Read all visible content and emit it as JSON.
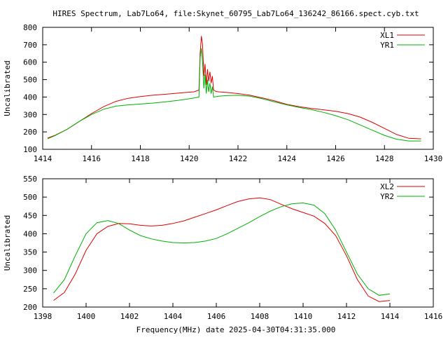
{
  "title": "HIRES Spectrum, Lab7Lo64, file:Skynet_60795_Lab7Lo64_136242_86166.spect.cyb.txt",
  "xlabel": "Frequency(MHz) date 2025-04-30T04:31:35.000",
  "chart_data": [
    {
      "type": "line",
      "ylabel": "Uncalibrated",
      "xlim": [
        1414,
        1430
      ],
      "ylim": [
        100,
        800
      ],
      "xticks": [
        1414,
        1416,
        1418,
        1420,
        1422,
        1424,
        1426,
        1428,
        1430
      ],
      "yticks": [
        100,
        200,
        300,
        400,
        500,
        600,
        700,
        800
      ],
      "legend": "top-right",
      "series": [
        {
          "name": "XL1",
          "color": "#e00000",
          "x": [
            1414.2,
            1414.5,
            1415,
            1415.5,
            1416,
            1416.5,
            1417,
            1417.5,
            1418,
            1418.5,
            1419,
            1419.5,
            1420,
            1420.2,
            1420.4,
            1420.45,
            1420.5,
            1420.55,
            1420.6,
            1420.65,
            1420.7,
            1420.75,
            1420.8,
            1420.85,
            1420.9,
            1420.95,
            1421.0,
            1421.1,
            1421.2,
            1421.5,
            1422,
            1422.5,
            1423,
            1423.5,
            1424,
            1424.5,
            1425,
            1425.5,
            1426,
            1426.5,
            1427,
            1427.5,
            1428,
            1428.5,
            1429,
            1429.5
          ],
          "values": [
            165,
            180,
            215,
            260,
            305,
            345,
            375,
            393,
            403,
            410,
            416,
            422,
            428,
            430,
            440,
            650,
            750,
            700,
            520,
            590,
            470,
            560,
            490,
            545,
            480,
            520,
            440,
            432,
            430,
            427,
            420,
            410,
            395,
            378,
            358,
            345,
            335,
            327,
            318,
            305,
            285,
            255,
            220,
            185,
            163,
            160
          ]
        },
        {
          "name": "YR1",
          "color": "#00b000",
          "x": [
            1414.2,
            1414.5,
            1415,
            1415.5,
            1416,
            1416.5,
            1417,
            1417.5,
            1418,
            1418.5,
            1419,
            1419.5,
            1420,
            1420.2,
            1420.4,
            1420.45,
            1420.5,
            1420.55,
            1420.6,
            1420.65,
            1420.7,
            1420.75,
            1420.8,
            1420.85,
            1420.9,
            1420.95,
            1421.0,
            1421.1,
            1421.2,
            1421.5,
            1422,
            1422.5,
            1423,
            1423.5,
            1424,
            1424.5,
            1425,
            1425.5,
            1426,
            1426.5,
            1427,
            1427.5,
            1428,
            1428.5,
            1429,
            1429.5
          ],
          "values": [
            160,
            178,
            215,
            260,
            300,
            330,
            348,
            355,
            360,
            365,
            372,
            380,
            390,
            395,
            400,
            620,
            680,
            600,
            450,
            530,
            420,
            500,
            430,
            480,
            420,
            460,
            400,
            402,
            405,
            408,
            410,
            405,
            390,
            372,
            355,
            340,
            328,
            312,
            293,
            270,
            240,
            210,
            180,
            158,
            148,
            148
          ]
        }
      ]
    },
    {
      "type": "line",
      "ylabel": "Uncalibrated",
      "xlim": [
        1398,
        1416
      ],
      "ylim": [
        200,
        550
      ],
      "xticks": [
        1398,
        1400,
        1402,
        1404,
        1406,
        1408,
        1410,
        1412,
        1414,
        1416
      ],
      "yticks": [
        200,
        250,
        300,
        350,
        400,
        450,
        500,
        550
      ],
      "legend": "top-right",
      "series": [
        {
          "name": "XL2",
          "color": "#e00000",
          "x": [
            1398.5,
            1399,
            1399.5,
            1400,
            1400.5,
            1401,
            1401.5,
            1402,
            1402.5,
            1403,
            1403.5,
            1404,
            1404.5,
            1405,
            1405.5,
            1406,
            1406.5,
            1407,
            1407.5,
            1408,
            1408.5,
            1409,
            1409.5,
            1410,
            1410.5,
            1411,
            1411.5,
            1412,
            1412.5,
            1413,
            1413.5,
            1414
          ],
          "values": [
            218,
            240,
            290,
            355,
            400,
            420,
            428,
            427,
            423,
            421,
            423,
            428,
            435,
            445,
            455,
            465,
            477,
            488,
            495,
            498,
            493,
            480,
            468,
            458,
            448,
            428,
            395,
            340,
            275,
            230,
            215,
            218
          ]
        },
        {
          "name": "YR2",
          "color": "#00b000",
          "x": [
            1398.5,
            1399,
            1399.5,
            1400,
            1400.5,
            1401,
            1401.5,
            1402,
            1402.5,
            1403,
            1403.5,
            1404,
            1404.5,
            1405,
            1405.5,
            1406,
            1406.5,
            1407,
            1407.5,
            1408,
            1408.5,
            1409,
            1409.5,
            1410,
            1410.5,
            1411,
            1411.5,
            1412,
            1412.5,
            1413,
            1413.5,
            1414
          ],
          "values": [
            238,
            275,
            340,
            400,
            430,
            436,
            428,
            410,
            395,
            386,
            380,
            376,
            375,
            376,
            380,
            387,
            400,
            415,
            430,
            447,
            462,
            474,
            482,
            484,
            478,
            455,
            410,
            350,
            290,
            250,
            232,
            236
          ]
        }
      ]
    }
  ]
}
